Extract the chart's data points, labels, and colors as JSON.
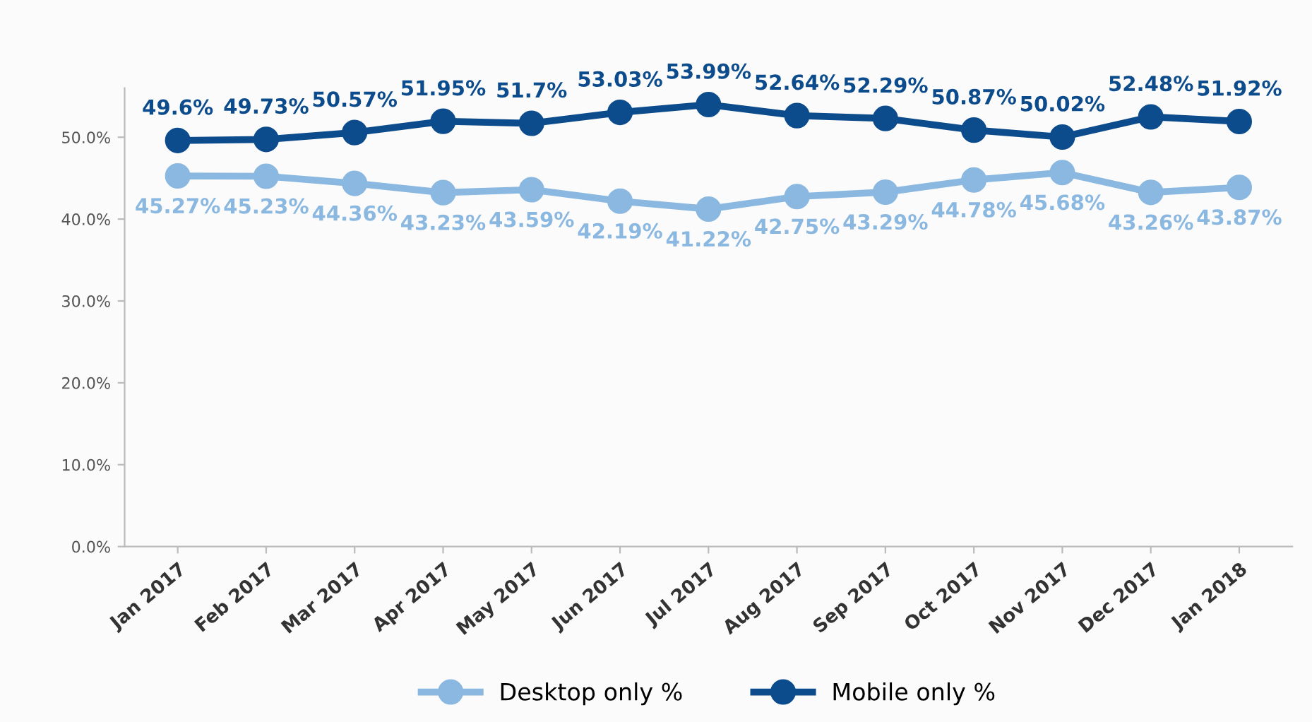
{
  "chart_data": {
    "type": "line",
    "categories": [
      "Jan 2017",
      "Feb 2017",
      "Mar 2017",
      "Apr 2017",
      "May 2017",
      "Jun 2017",
      "Jul 2017",
      "Aug 2017",
      "Sep 2017",
      "Oct 2017",
      "Nov 2017",
      "Dec 2017",
      "Jan 2018"
    ],
    "series": [
      {
        "name": "Desktop only %",
        "color": "#8ab8e0",
        "values": [
          45.27,
          45.23,
          44.36,
          43.23,
          43.59,
          42.19,
          41.22,
          42.75,
          43.29,
          44.78,
          45.68,
          43.26,
          43.87
        ],
        "value_labels": [
          "45.27%",
          "45.23%",
          "44.36%",
          "43.23%",
          "43.59%",
          "42.19%",
          "41.22%",
          "42.75%",
          "43.29%",
          "44.78%",
          "45.68%",
          "43.26%",
          "43.87%"
        ]
      },
      {
        "name": "Mobile only %",
        "color": "#0d4c8c",
        "values": [
          49.6,
          49.73,
          50.57,
          51.95,
          51.7,
          53.03,
          53.99,
          52.64,
          52.29,
          50.87,
          50.02,
          52.48,
          51.92
        ],
        "value_labels": [
          "49.6%",
          "49.73%",
          "50.57%",
          "51.95%",
          "51.7%",
          "53.03%",
          "53.99%",
          "52.64%",
          "52.29%",
          "50.87%",
          "50.02%",
          "52.48%",
          "51.92%"
        ]
      }
    ],
    "ylim": [
      0,
      56
    ],
    "yticks": [
      {
        "value": 0,
        "label": "0.0%"
      },
      {
        "value": 10,
        "label": "10.0%"
      },
      {
        "value": 20,
        "label": "20.0%"
      },
      {
        "value": 30,
        "label": "30.0%"
      },
      {
        "value": 40,
        "label": "40.0%"
      },
      {
        "value": 50,
        "label": "50.0%"
      }
    ],
    "marker": "circle",
    "line_style": "solid",
    "grid": false,
    "legend": "bottom"
  }
}
